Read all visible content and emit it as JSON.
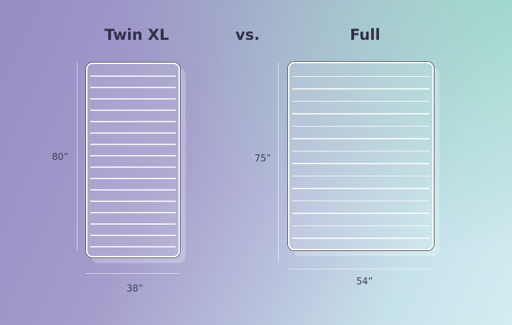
{
  "left": {
    "title": "Twin XL",
    "length": "80”",
    "width": "38”"
  },
  "vs": "vs.",
  "right": {
    "title": "Full",
    "length": "75”",
    "width": "54”"
  },
  "colors": {
    "background_left": "#968dc4",
    "background_right": "#c6e2ea",
    "text": "#2f3047",
    "outline": "#ffffff"
  }
}
